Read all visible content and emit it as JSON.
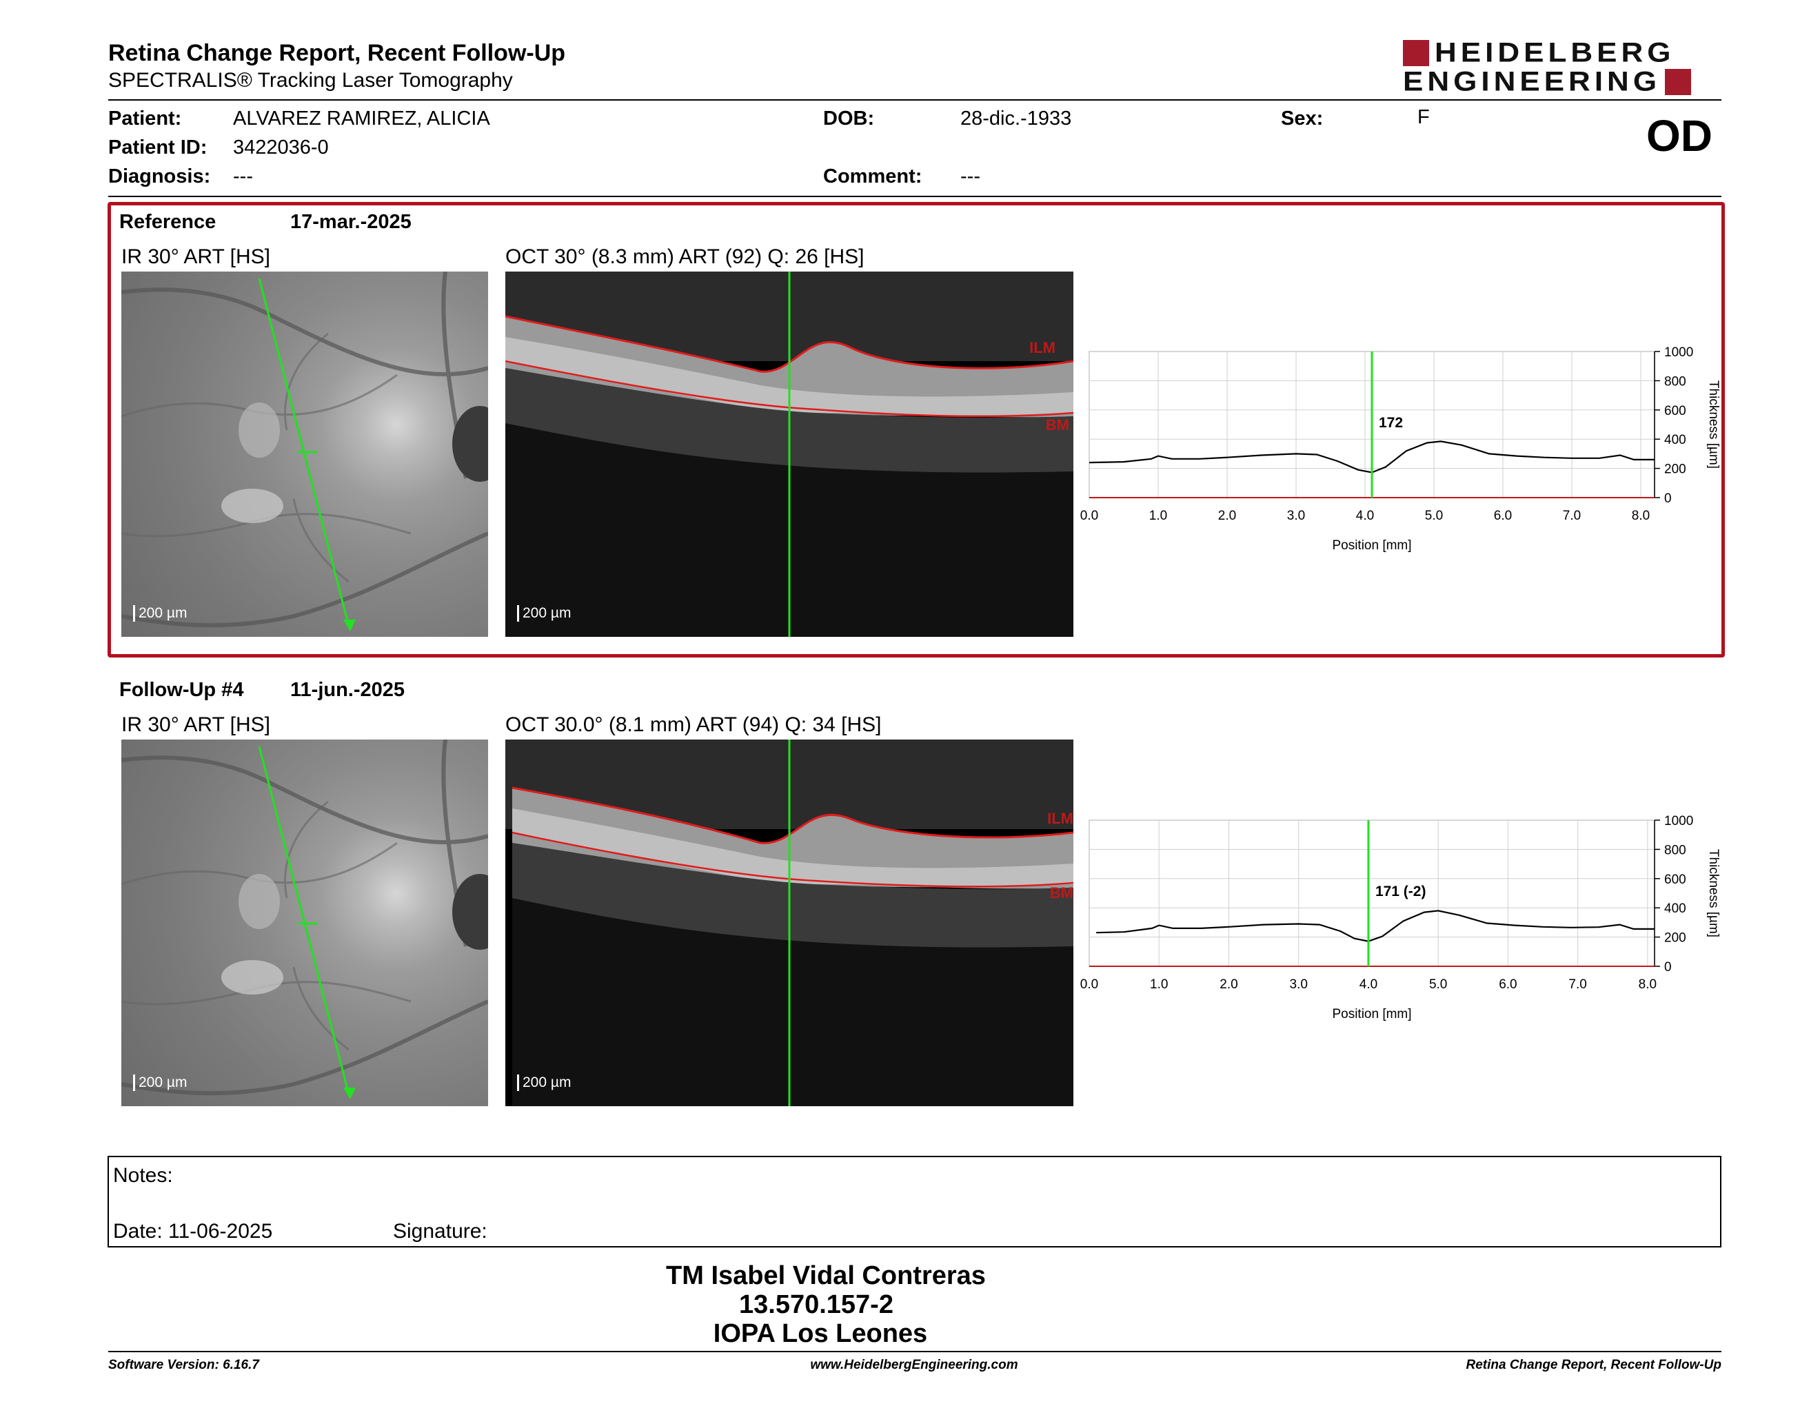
{
  "header": {
    "title": "Retina Change Report, Recent Follow-Up",
    "subtitle": "SPECTRALIS® Tracking Laser Tomography",
    "logo_line1": "HEIDELBERG",
    "logo_line2": "ENGINEERING",
    "eye": "OD"
  },
  "patient": {
    "name_label": "Patient:",
    "name": "ALVAREZ RAMIREZ, ALICIA",
    "id_label": "Patient ID:",
    "id": "3422036-0",
    "diagnosis_label": "Diagnosis:",
    "diagnosis": "---",
    "dob_label": "DOB:",
    "dob": "28-dic.-1933",
    "comment_label": "Comment:",
    "comment": "---",
    "sex_label": "Sex:",
    "sex": "F"
  },
  "reference": {
    "label": "Reference",
    "date": "17-mar.-2025",
    "ir_label": "IR 30° ART [HS]",
    "oct_label": "OCT 30° (8.3 mm) ART (92) Q: 26 [HS]",
    "ir_scale": "200 µm",
    "oct_scale": "200 µm",
    "ilm": "ILM",
    "bm": "BM"
  },
  "followup": {
    "label": "Follow-Up #4",
    "date": "11-jun.-2025",
    "ir_label": "IR 30° ART [HS]",
    "oct_label": "OCT 30.0° (8.1 mm) ART (94) Q: 34 [HS]",
    "ir_scale": "200 µm",
    "oct_scale": "200 µm",
    "ilm": "ILM",
    "bm": "BM"
  },
  "chart_data": [
    {
      "type": "line",
      "xlabel": "Position [mm]",
      "ylabel": "Thickness [µm]",
      "xlim": [
        0,
        8.2
      ],
      "ylim": [
        0,
        1000
      ],
      "x_ticks": [
        "0.0",
        "1.0",
        "2.0",
        "3.0",
        "4.0",
        "5.0",
        "6.0",
        "7.0",
        "8.0"
      ],
      "y_ticks": [
        "0",
        "200",
        "400",
        "600",
        "800",
        "1000"
      ],
      "marker_x": 4.1,
      "marker_label": "172",
      "x": [
        0,
        0.5,
        0.9,
        1.0,
        1.2,
        1.6,
        2.0,
        2.5,
        3.0,
        3.3,
        3.6,
        3.9,
        4.1,
        4.3,
        4.6,
        4.9,
        5.1,
        5.4,
        5.8,
        6.2,
        6.6,
        7.0,
        7.4,
        7.7,
        7.9,
        8.2
      ],
      "y": [
        240,
        245,
        265,
        285,
        265,
        265,
        275,
        290,
        300,
        295,
        250,
        190,
        172,
        210,
        320,
        375,
        385,
        360,
        300,
        285,
        275,
        270,
        270,
        290,
        260,
        260
      ]
    },
    {
      "type": "line",
      "xlabel": "Position [mm]",
      "ylabel": "Thickness [µm]",
      "xlim": [
        0,
        8.1
      ],
      "ylim": [
        0,
        1000
      ],
      "x_ticks": [
        "0.0",
        "1.0",
        "2.0",
        "3.0",
        "4.0",
        "5.0",
        "6.0",
        "7.0",
        "8.0"
      ],
      "y_ticks": [
        "0",
        "200",
        "400",
        "600",
        "800",
        "1000"
      ],
      "marker_x": 4.0,
      "marker_label": "171 (-2)",
      "x": [
        0.1,
        0.5,
        0.9,
        1.0,
        1.2,
        1.6,
        2.0,
        2.5,
        3.0,
        3.3,
        3.6,
        3.8,
        4.0,
        4.2,
        4.5,
        4.8,
        5.0,
        5.3,
        5.7,
        6.1,
        6.5,
        6.9,
        7.3,
        7.6,
        7.8,
        8.1
      ],
      "y": [
        230,
        235,
        260,
        280,
        260,
        260,
        270,
        285,
        290,
        285,
        240,
        190,
        171,
        205,
        310,
        370,
        380,
        350,
        295,
        280,
        270,
        265,
        268,
        285,
        255,
        255
      ]
    }
  ],
  "notes": {
    "label": "Notes:",
    "date_label": "Date: 11-06-2025",
    "signature_label": "Signature:"
  },
  "signatory": {
    "name": "TM Isabel Vidal Contreras",
    "rut": "13.570.157-2",
    "institution": "IOPA Los Leones"
  },
  "footer": {
    "software": "Software Version: 6.16.7",
    "website": "www.HeidelbergEngineering.com",
    "report": "Retina Change Report, Recent Follow-Up"
  }
}
